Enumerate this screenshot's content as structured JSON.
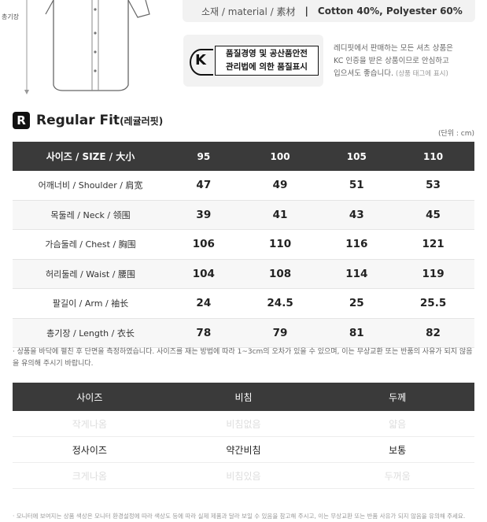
{
  "shirt": {
    "length_label": "총기장"
  },
  "material": {
    "label": "소재 / material / 素材",
    "separator": "|",
    "value": "Cotton 40%, Polyester 60%"
  },
  "kc": {
    "mark_text_line1": "품질경영 및 공산품안전",
    "mark_text_line2": "관리법에 의한 품질표시",
    "desc_line1": "레디핏에서 판매하는 모든 셔츠 상품은",
    "desc_line2": "KC 인증을 받은 상품이므로 안심하고",
    "desc_line3": "입으셔도 좋습니다.",
    "desc_note": "(상품 태그에 표시)"
  },
  "fit": {
    "badge": "R",
    "name": "Regular Fit",
    "sub": "(레귤러핏)",
    "unit": "(단위 : cm)"
  },
  "size_table": {
    "header": [
      "사이즈 / SIZE / 大小",
      "95",
      "100",
      "105",
      "110"
    ],
    "rows": [
      {
        "label": "어깨너비 / Shoulder / 肩宽",
        "values": [
          "47",
          "49",
          "51",
          "53"
        ]
      },
      {
        "label": "목둘레 / Neck / 领围",
        "values": [
          "39",
          "41",
          "43",
          "45"
        ]
      },
      {
        "label": "가슴둘레 / Chest / 胸围",
        "values": [
          "106",
          "110",
          "116",
          "121"
        ]
      },
      {
        "label": "허리둘레 / Waist / 腰围",
        "values": [
          "104",
          "108",
          "114",
          "119"
        ]
      },
      {
        "label": "팔길이 / Arm / 袖长",
        "values": [
          "24",
          "24.5",
          "25",
          "25.5"
        ]
      },
      {
        "label": "총기장 / Length / 衣长",
        "values": [
          "78",
          "79",
          "81",
          "82"
        ]
      }
    ]
  },
  "note1": "· 상품을 바닥에 펼친 후 단면을 측정하였습니다. 사이즈를 재는 방법에 따라 1~3cm의 오차가 있을 수 있으며, 이는 무상교환 또는 반품의 사유가 되지 않음을 유의해 주시기 바랍니다.",
  "fit_table": {
    "header": [
      "사이즈",
      "비침",
      "두께"
    ],
    "rows": [
      {
        "values": [
          "작게나옴",
          "비침없음",
          "얇음"
        ],
        "selected": false
      },
      {
        "values": [
          "정사이즈",
          "약간비침",
          "보통"
        ],
        "selected": true
      },
      {
        "values": [
          "크게나옴",
          "비침있음",
          "두꺼움"
        ],
        "selected": false
      }
    ]
  },
  "note2": "· 모니터에 보여지는 상품 색상은 모니터 환경설정에 따라 색상도 등에 따라 실제 제품과 달라 보일 수 있음을 참고해 주시고, 이는 무상교환 또는 반품 사유가 되지 않음을 유의해 주세요."
}
